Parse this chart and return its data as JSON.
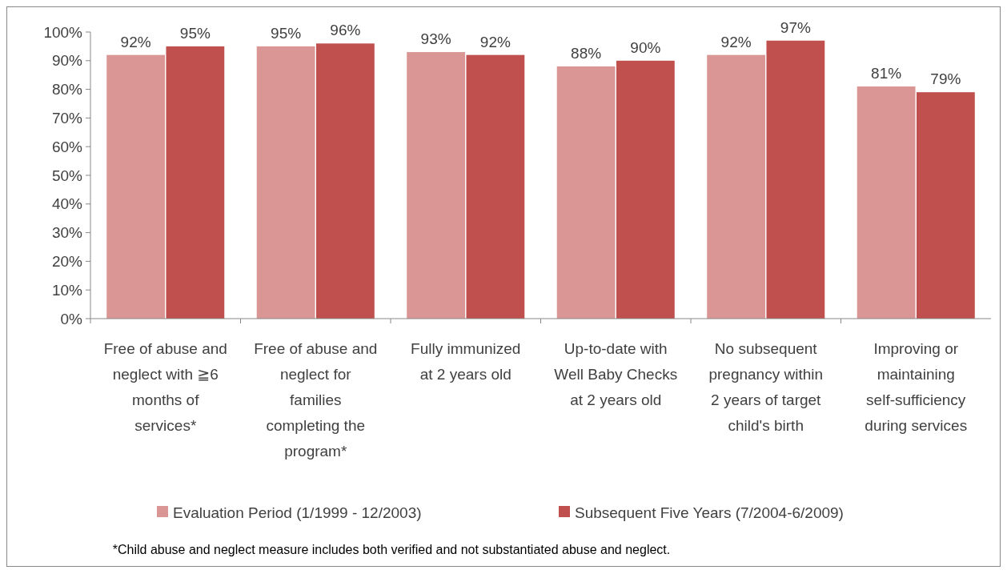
{
  "chart_data": {
    "type": "bar",
    "categories": [
      "Free of abuse and neglect with ≧6 months of services*",
      "Free of abuse and neglect for families completing the program*",
      "Fully immunized at 2 years old",
      "Up-to-date with Well Baby Checks at 2 years old",
      "No subsequent pregnancy within 2 years of target child's birth",
      "Improving or maintaining self-sufficiency during services"
    ],
    "series": [
      {
        "name": "Evaluation Period (1/1999 - 12/2003)",
        "color": "#d99694",
        "values": [
          92,
          95,
          93,
          88,
          92,
          81
        ],
        "value_labels": [
          "92%",
          "95%",
          "93%",
          "88%",
          "92%",
          "81%"
        ]
      },
      {
        "name": "Subsequent Five Years (7/2004-6/2009)",
        "color": "#c0504d",
        "values": [
          95,
          96,
          92,
          90,
          97,
          79
        ],
        "value_labels": [
          "95%",
          "96%",
          "92%",
          "90%",
          "97%",
          "79%"
        ]
      }
    ],
    "ylim": [
      0,
      100
    ],
    "yticks": [
      {
        "value": 0,
        "label": "0%"
      },
      {
        "value": 10,
        "label": "10%"
      },
      {
        "value": 20,
        "label": "20%"
      },
      {
        "value": 30,
        "label": "30%"
      },
      {
        "value": 40,
        "label": "40%"
      },
      {
        "value": 50,
        "label": "50%"
      },
      {
        "value": 60,
        "label": "60%"
      },
      {
        "value": 70,
        "label": "70%"
      },
      {
        "value": 80,
        "label": "80%"
      },
      {
        "value": 90,
        "label": "90%"
      },
      {
        "value": 100,
        "label": "100%"
      }
    ],
    "grid": false,
    "legend": "bottom",
    "annotations": [
      "*Child abuse and neglect measure includes both verified and not substantiated abuse and neglect."
    ]
  }
}
